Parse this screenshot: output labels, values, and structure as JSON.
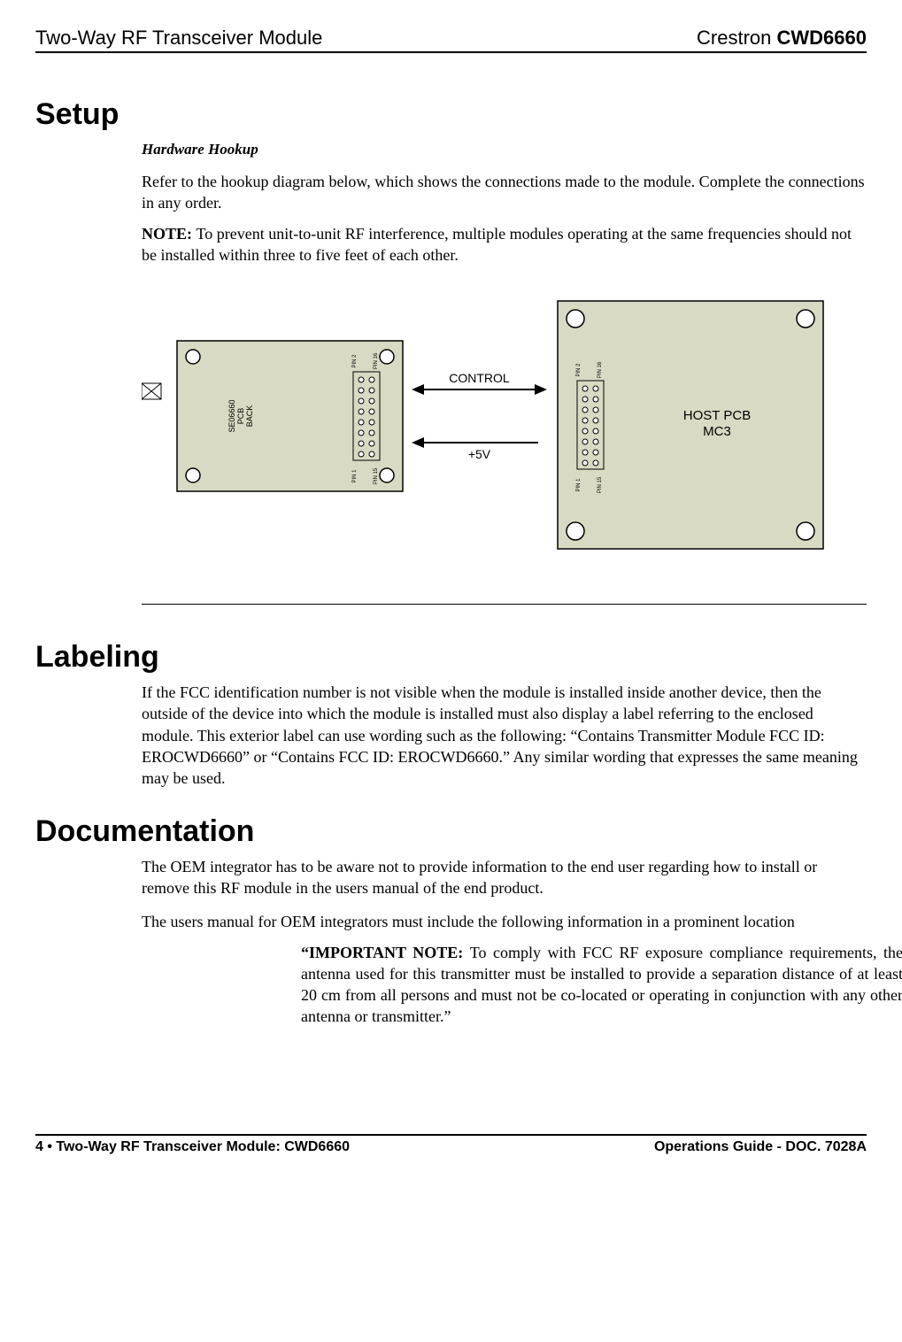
{
  "header": {
    "left": "Two-Way RF Transceiver Module",
    "right_prefix": "Crestron ",
    "right_bold": "CWD6660"
  },
  "setup": {
    "title": "Setup",
    "subheading": "Hardware Hookup",
    "para1": "Refer to the hookup diagram below, which shows the connections made to the module. Complete the connections in any order.",
    "note_prefix": "NOTE: ",
    "note_body": "To prevent unit-to-unit RF interference, multiple modules operating at the same frequencies should not be installed within three to five feet of each other."
  },
  "diagram": {
    "left_pcb_lines": [
      "SE06660",
      "PCB",
      "BACK"
    ],
    "right_pcb_lines": [
      "HOST PCB",
      "MC3"
    ],
    "arrow_top": "CONTROL",
    "arrow_bottom": "+5V",
    "pin_labels": {
      "p1": "PIN 1",
      "p2": "PIN 2",
      "p15": "PIN 15",
      "p16": "PIN 16"
    },
    "colors": {
      "pcb_fill": "#d8dac3",
      "pcb_stroke": "#000000",
      "hole_fill": "#ffffff",
      "text": "#000000",
      "pin_row_fill": "#d8dac3"
    },
    "font": {
      "pcb_label_size": 9,
      "pin_label_size": 6,
      "arrow_label_size": 14
    }
  },
  "labeling": {
    "title": "Labeling",
    "para": "If the FCC identification number is not visible when the module is installed inside another device, then the outside of the device into which the module is installed must also display a label referring to the enclosed module.  This exterior label can use wording such as the following: “Contains Transmitter Module FCC ID: EROCWD6660” or “Contains FCC ID: EROCWD6660.”  Any similar wording that expresses the same meaning may be used."
  },
  "documentation": {
    "title": "Documentation",
    "para1": "The OEM integrator has to be aware not to provide information to the end user regarding how to install or remove this RF module in the users manual of the end product.",
    "para2": "The users manual for OEM integrators must include the following information in a prominent location",
    "note_prefix": "“IMPORTANT NOTE: ",
    "note_body": "To comply with FCC RF exposure compliance requirements, the antenna used for this transmitter must be installed to provide a separation distance of at least 20 cm from all persons and must not be co-located or operating in conjunction with any other antenna or transmitter.”"
  },
  "footer": {
    "left_prefix": "4  ",
    "left_bullet": "•",
    "left_suffix": "  Two-Way RF Transceiver Module: CWD6660",
    "right": "Operations Guide - DOC. 7028A"
  }
}
